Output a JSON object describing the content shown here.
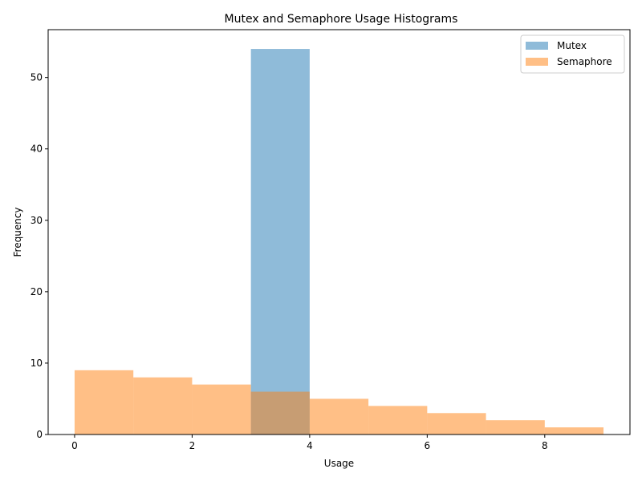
{
  "chart_data": {
    "type": "bar",
    "title": "Mutex and Semaphore Usage Histograms",
    "xlabel": "Usage",
    "ylabel": "Frequency",
    "xlim": [
      -0.45,
      9.45
    ],
    "ylim": [
      0,
      56.7
    ],
    "xticks": [
      0,
      2,
      4,
      6,
      8
    ],
    "yticks": [
      0,
      10,
      20,
      30,
      40,
      50
    ],
    "legend_position": "top-right",
    "series": [
      {
        "name": "Mutex",
        "color": "#1f77b4",
        "opacity": 0.5,
        "bins": [
          {
            "x0": 3,
            "x1": 4,
            "value": 54
          }
        ]
      },
      {
        "name": "Semaphore",
        "color": "#ff7f0e",
        "opacity": 0.5,
        "bins": [
          {
            "x0": 0,
            "x1": 1,
            "value": 9
          },
          {
            "x0": 1,
            "x1": 2,
            "value": 8
          },
          {
            "x0": 2,
            "x1": 3,
            "value": 7
          },
          {
            "x0": 3,
            "x1": 4,
            "value": 6
          },
          {
            "x0": 4,
            "x1": 5,
            "value": 5
          },
          {
            "x0": 5,
            "x1": 6,
            "value": 4
          },
          {
            "x0": 6,
            "x1": 7,
            "value": 3
          },
          {
            "x0": 7,
            "x1": 8,
            "value": 2
          },
          {
            "x0": 8,
            "x1": 9,
            "value": 1
          }
        ]
      }
    ]
  }
}
